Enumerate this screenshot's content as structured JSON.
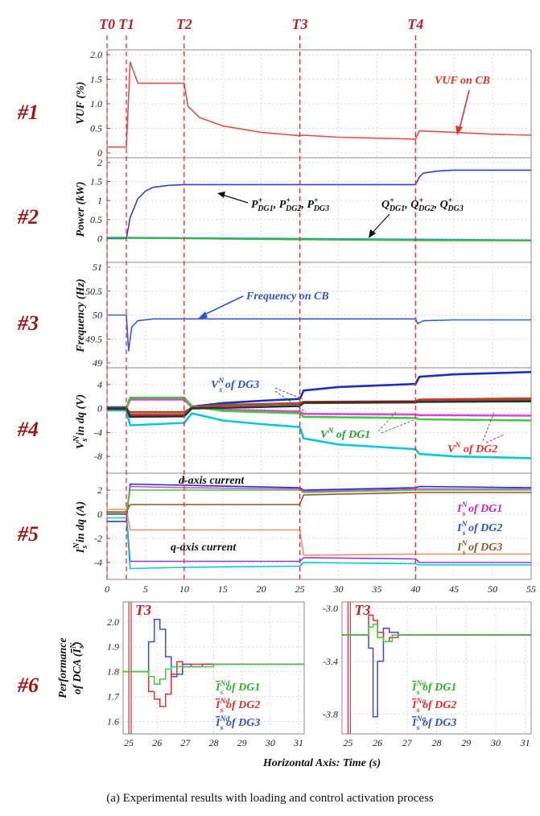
{
  "caption": "(a) Experimental results with loading and control activation process",
  "event_markers": [
    {
      "label": "T0",
      "t": 0
    },
    {
      "label": "T1",
      "t": 2.5
    },
    {
      "label": "T2",
      "t": 10
    },
    {
      "label": "T3",
      "t": 25
    },
    {
      "label": "T4",
      "t": 40
    }
  ],
  "colors": {
    "marker": "#e03030",
    "panel_label": "#a31414",
    "frame": "#888888",
    "grid": "#d8d8d8"
  },
  "chart_data": [
    {
      "type": "line",
      "panel": "#1",
      "ylabel": "VUF (%)",
      "xlim": [
        0,
        55
      ],
      "ylim": [
        0,
        2
      ],
      "yticks": [
        0,
        0.5,
        1,
        1.5,
        2.0
      ],
      "ytick_labels": [
        "0",
        "0.5",
        "1.0",
        "1.5",
        "2.0"
      ],
      "series": [
        {
          "name": "VUF on CB",
          "color": "#e05050",
          "x": [
            0,
            2.5,
            3,
            4,
            6,
            10,
            10.5,
            12,
            15,
            20,
            25,
            25.5,
            30,
            35,
            40,
            40.5,
            45,
            50,
            55
          ],
          "y": [
            0.12,
            0.12,
            1.85,
            1.42,
            1.42,
            1.42,
            0.95,
            0.72,
            0.55,
            0.42,
            0.35,
            0.36,
            0.32,
            0.3,
            0.28,
            0.45,
            0.42,
            0.38,
            0.36
          ]
        }
      ],
      "annotations": [
        {
          "text": "VUF on CB",
          "color": "#e03030"
        }
      ]
    },
    {
      "type": "line",
      "panel": "#2",
      "ylabel": "Power (kW)",
      "xlim": [
        0,
        55
      ],
      "ylim": [
        -0.5,
        2
      ],
      "yticks": [
        0,
        0.5,
        1,
        1.5,
        2
      ],
      "ytick_labels": [
        "0",
        "0.5",
        "1",
        "1.5",
        "2"
      ],
      "series": [
        {
          "color": "#3040d0",
          "x": [
            0,
            2.5,
            3,
            4,
            5,
            6,
            8,
            10,
            25,
            40,
            40.5,
            41,
            43,
            45,
            55
          ],
          "y": [
            0,
            0,
            0.55,
            1.05,
            1.25,
            1.35,
            1.4,
            1.42,
            1.42,
            1.42,
            1.62,
            1.72,
            1.78,
            1.8,
            1.8
          ]
        },
        {
          "color": "#20a8a8",
          "x": [
            0,
            2.5,
            10,
            25,
            40,
            55
          ],
          "y": [
            0.03,
            0.03,
            0.02,
            0.0,
            -0.02,
            -0.04
          ]
        },
        {
          "color": "#40b040",
          "x": [
            0,
            2.5,
            10,
            25,
            40,
            55
          ],
          "y": [
            0.02,
            0.01,
            0.0,
            -0.03,
            -0.05,
            -0.06
          ]
        }
      ],
      "annotations": [
        {
          "text": "P",
          "sub": "DG1",
          "suffix": ", "
        },
        {
          "text": "P",
          "sub": "DG2",
          "suffix": ", "
        },
        {
          "text": "P",
          "sub": "DG3",
          "suffix": ""
        },
        {
          "text": "Q",
          "sub": "DG1",
          "suffix": ", "
        },
        {
          "text": "Q",
          "sub": "DG2",
          "suffix": ", "
        },
        {
          "text": "Q",
          "sub": "DG3",
          "suffix": ""
        }
      ]
    },
    {
      "type": "line",
      "panel": "#3",
      "ylabel": "Frequency (Hz)",
      "xlim": [
        0,
        55
      ],
      "ylim": [
        49,
        51
      ],
      "yticks": [
        49,
        49.5,
        50,
        50.5,
        51
      ],
      "ytick_labels": [
        "49",
        "49.5",
        "50",
        "50.5",
        "51"
      ],
      "series": [
        {
          "name": "Frequency on CB",
          "color": "#3b5bd0",
          "x": [
            0,
            2.5,
            2.8,
            3.2,
            4,
            6,
            10,
            25,
            40,
            40.3,
            41,
            45,
            55
          ],
          "y": [
            50,
            50,
            49.25,
            49.75,
            49.88,
            49.92,
            49.92,
            49.92,
            49.92,
            49.82,
            49.88,
            49.9,
            49.9
          ]
        }
      ],
      "annotations": [
        {
          "text": "Frequency on CB",
          "color": "#2f55c8"
        }
      ]
    },
    {
      "type": "line",
      "panel": "#4",
      "ylabel": "V_s^N in dq (V)",
      "xlim": [
        0,
        55
      ],
      "ylim": [
        -10,
        6
      ],
      "yticks": [
        -8,
        -4,
        0,
        4
      ],
      "ytick_labels": [
        "-8",
        "-4",
        "0",
        "4"
      ],
      "series": [
        {
          "color": "#1a2fbf",
          "x": [
            0,
            2.5,
            3,
            10,
            11,
            15,
            20,
            25,
            25.5,
            30,
            40,
            40.5,
            45,
            55
          ],
          "y": [
            0.2,
            0.2,
            -1.2,
            -1.2,
            0.3,
            0.9,
            1.3,
            1.6,
            3.0,
            3.6,
            4.1,
            5.3,
            5.7,
            6.1
          ]
        },
        {
          "color": "#00c8d8",
          "x": [
            0,
            2.5,
            3,
            10,
            11,
            15,
            20,
            25,
            25.5,
            30,
            40,
            40.5,
            45,
            55
          ],
          "y": [
            -0.3,
            -0.3,
            -2.8,
            -2.4,
            -0.8,
            -2.0,
            -2.6,
            -3.1,
            -5.0,
            -6.0,
            -6.8,
            -7.6,
            -8.0,
            -8.3
          ]
        },
        {
          "color": "#e040e0",
          "x": [
            0,
            2.5,
            3,
            10,
            11,
            15,
            25,
            25.5,
            40,
            40.5,
            55
          ],
          "y": [
            0.0,
            0.0,
            1.5,
            1.5,
            0.2,
            -0.2,
            -0.5,
            -0.9,
            -1.0,
            -1.1,
            -1.2
          ]
        },
        {
          "color": "#40c840",
          "x": [
            0,
            2.5,
            3,
            10,
            11,
            15,
            25,
            25.5,
            40,
            40.5,
            55
          ],
          "y": [
            0.1,
            0.1,
            1.8,
            1.8,
            0.4,
            -0.4,
            -0.8,
            -1.4,
            -1.6,
            -1.8,
            -2.0
          ]
        },
        {
          "color": "#e03030",
          "x": [
            0,
            2.5,
            3,
            10,
            11,
            15,
            25,
            25.5,
            40,
            40.5,
            55
          ],
          "y": [
            0.0,
            0.0,
            -1.0,
            -1.0,
            0.2,
            0.6,
            0.9,
            1.1,
            1.2,
            1.5,
            1.7
          ]
        },
        {
          "color": "#8b5a2b",
          "x": [
            0,
            2.5,
            3,
            10,
            11,
            15,
            25,
            25.5,
            40,
            40.5,
            55
          ],
          "y": [
            -0.1,
            -0.1,
            -0.6,
            -0.6,
            0.1,
            0.5,
            0.8,
            0.9,
            1.0,
            1.3,
            1.5
          ]
        },
        {
          "color": "#303030",
          "x": [
            0,
            2.5,
            3,
            10,
            11,
            25,
            25.5,
            55
          ],
          "y": [
            0.0,
            0.0,
            -1.4,
            -1.3,
            0.0,
            0.4,
            1.0,
            1.2
          ]
        }
      ],
      "annotations": [
        {
          "text": "V",
          "sup": "N",
          "sub": "s",
          "suffix": " of DG3",
          "color": "#2f55c8"
        },
        {
          "text": "V",
          "sup": "N",
          "suffix": " of DG1",
          "color": "#30a030"
        },
        {
          "text": "V",
          "sup": "N",
          "suffix": " of DG2",
          "color": "#e03030"
        }
      ]
    },
    {
      "type": "line",
      "panel": "#5",
      "ylabel": "I_s^N in dq (A)",
      "xlim": [
        0,
        55
      ],
      "ylim": [
        -5,
        3
      ],
      "yticks": [
        -4,
        -2,
        0,
        2
      ],
      "ytick_labels": [
        "-4",
        "-2",
        "0",
        "2"
      ],
      "xticks": [
        0,
        5,
        10,
        15,
        20,
        25,
        30,
        35,
        40,
        45,
        50,
        55
      ],
      "xtick_labels": [
        "0",
        "5",
        "10",
        "15",
        "20",
        "25",
        "30",
        "35",
        "40",
        "45",
        "50",
        "55"
      ],
      "series": [
        {
          "color": "#1a2fbf",
          "x": [
            0,
            2.5,
            3,
            10,
            25,
            25.5,
            40,
            40.5,
            55
          ],
          "y": [
            -0.6,
            -0.6,
            2.5,
            2.4,
            2.2,
            2.0,
            2.2,
            2.3,
            2.2
          ]
        },
        {
          "color": "#e040e0",
          "x": [
            0,
            2.5,
            3,
            10,
            25,
            25.5,
            40,
            40.5,
            55
          ],
          "y": [
            0.0,
            0.0,
            2.3,
            2.2,
            2.1,
            1.9,
            2.1,
            2.1,
            2.1
          ]
        },
        {
          "color": "#8b5a2b",
          "x": [
            0,
            2.5,
            3,
            10,
            25,
            25.5,
            40,
            40.5,
            55
          ],
          "y": [
            0.2,
            0.2,
            0.8,
            0.8,
            0.8,
            1.6,
            1.8,
            1.8,
            1.8
          ]
        },
        {
          "color": "#e89070",
          "x": [
            0,
            2.5,
            3,
            10,
            25,
            25.5,
            40,
            40.5,
            55
          ],
          "y": [
            0.4,
            0.4,
            -1.3,
            -1.3,
            -1.3,
            -3.4,
            -3.3,
            -3.3,
            -3.3
          ]
        },
        {
          "color": "#9040c8",
          "x": [
            0,
            2.5,
            3,
            10,
            25,
            25.5,
            40,
            40.5,
            55
          ],
          "y": [
            0.0,
            0.0,
            -3.9,
            -3.9,
            -3.9,
            -3.6,
            -3.7,
            -4.0,
            -4.0
          ]
        },
        {
          "color": "#00c8d8",
          "x": [
            0,
            2.5,
            3,
            10,
            25,
            25.5,
            40,
            40.5,
            55
          ],
          "y": [
            -0.3,
            -0.3,
            -4.5,
            -4.4,
            -4.3,
            -4.0,
            -4.1,
            -4.2,
            -4.2
          ]
        },
        {
          "color": "#40c840",
          "x": [
            0,
            2.5,
            3,
            10,
            25,
            25.5,
            40,
            40.5,
            55
          ],
          "y": [
            0.1,
            0.1,
            2.0,
            2.0,
            2.0,
            1.8,
            2.0,
            2.0,
            2.0
          ]
        }
      ],
      "annotations": [
        {
          "text": "d-axis current",
          "color": "#111111"
        },
        {
          "text": "q-axis current",
          "color": "#111111"
        },
        {
          "text": "I",
          "sup": "N",
          "sub": "s",
          "suffix": " of DG1",
          "color": "#d020c8"
        },
        {
          "text": "I",
          "sup": "N",
          "sub": "s",
          "suffix": " of DG2",
          "color": "#2f55c8"
        },
        {
          "text": "I",
          "sup": "N",
          "sub": "s",
          "suffix": " of DG3",
          "color": "#8b5a2b"
        }
      ]
    },
    {
      "type": "line",
      "panel": "#6",
      "subplot": "left",
      "ylabel_lines": [
        "Performance",
        "of DCA ("
      ],
      "ylabel_symbol": {
        "text": "I",
        "sup": "N",
        "sub": "s"
      },
      "xlim": [
        24.8,
        31.2
      ],
      "ylim": [
        1.55,
        2.08
      ],
      "yticks": [
        1.6,
        1.7,
        1.8,
        1.9,
        2.0
      ],
      "ytick_labels": [
        "1.6",
        "1.7",
        "1.8",
        "1.9",
        "2.0"
      ],
      "xticks": [
        25,
        26,
        27,
        28,
        29,
        30,
        31
      ],
      "xtick_labels": [
        "25",
        "26",
        "27",
        "28",
        "29",
        "30",
        "31"
      ],
      "series": [
        {
          "color": "#3b4bd8",
          "step": true,
          "x": [
            24.8,
            25.5,
            25.7,
            25.9,
            26.1,
            26.3,
            26.5,
            26.7,
            26.9,
            27.2,
            27.6,
            28.0,
            31.2
          ],
          "y": [
            1.8,
            1.8,
            1.92,
            2.01,
            1.97,
            1.86,
            1.78,
            1.79,
            1.83,
            1.82,
            1.83,
            1.83,
            1.83
          ]
        },
        {
          "color": "#e03030",
          "step": true,
          "x": [
            24.8,
            25.5,
            25.7,
            25.9,
            26.1,
            26.3,
            26.5,
            26.7,
            26.9,
            27.2,
            28.0,
            31.2
          ],
          "y": [
            1.8,
            1.8,
            1.72,
            1.69,
            1.66,
            1.71,
            1.79,
            1.84,
            1.82,
            1.83,
            1.83,
            1.83
          ]
        },
        {
          "color": "#40c840",
          "step": true,
          "x": [
            24.8,
            25.5,
            25.7,
            25.9,
            26.1,
            26.3,
            26.5,
            26.7,
            27.0,
            28.0,
            31.2
          ],
          "y": [
            1.8,
            1.8,
            1.78,
            1.75,
            1.77,
            1.81,
            1.82,
            1.82,
            1.82,
            1.83,
            1.83
          ]
        }
      ],
      "annotations": [
        {
          "text": "I",
          "sup": "Nd",
          "sub": "s",
          "bar": true,
          "suffix": " of DG1",
          "color": "#30b030"
        },
        {
          "text": "I",
          "sup": "Nd",
          "sub": "s",
          "bar": true,
          "suffix": " of DG2",
          "color": "#e03030"
        },
        {
          "text": "I",
          "sup": "Nd",
          "sub": "s",
          "bar": true,
          "suffix": " of DG3",
          "color": "#2f55c8"
        }
      ]
    },
    {
      "type": "line",
      "panel": "#6",
      "subplot": "right",
      "xlim": [
        24.8,
        31.2
      ],
      "ylim": [
        -3.95,
        -2.95
      ],
      "yticks": [
        -3.8,
        -3.4,
        -3.0
      ],
      "ytick_labels": [
        "-3.8",
        "-3.4",
        "-3.0"
      ],
      "xticks": [
        25,
        26,
        27,
        28,
        29,
        30,
        31
      ],
      "xtick_labels": [
        "25",
        "26",
        "27",
        "28",
        "29",
        "30",
        "31"
      ],
      "series": [
        {
          "color": "#3b4bd8",
          "step": true,
          "x": [
            24.8,
            25.5,
            25.7,
            25.85,
            26.0,
            26.2,
            26.4,
            26.7,
            27.0,
            31.2
          ],
          "y": [
            -3.2,
            -3.2,
            -3.3,
            -3.82,
            -3.4,
            -3.15,
            -3.18,
            -3.2,
            -3.2,
            -3.2
          ]
        },
        {
          "color": "#e03030",
          "step": true,
          "x": [
            24.8,
            25.5,
            25.7,
            25.85,
            26.0,
            26.2,
            26.4,
            26.7,
            27.0,
            31.2
          ],
          "y": [
            -3.2,
            -3.2,
            -3.05,
            -3.09,
            -3.18,
            -3.25,
            -3.22,
            -3.2,
            -3.2,
            -3.2
          ]
        },
        {
          "color": "#40c840",
          "step": true,
          "x": [
            24.8,
            25.5,
            25.7,
            25.85,
            26.0,
            26.2,
            26.5,
            27.0,
            31.2
          ],
          "y": [
            -3.2,
            -3.2,
            -3.14,
            -3.12,
            -3.22,
            -3.25,
            -3.2,
            -3.2,
            -3.2
          ]
        }
      ],
      "annotations": [
        {
          "text": "I",
          "sup": "Nq",
          "sub": "s",
          "bar": true,
          "suffix": " of DG1",
          "color": "#30b030"
        },
        {
          "text": "I",
          "sup": "Nq",
          "sub": "s",
          "bar": true,
          "suffix": " of DG2",
          "color": "#e03030"
        },
        {
          "text": "I",
          "sup": "Nq",
          "sub": "s",
          "bar": true,
          "suffix": " of DG3",
          "color": "#2f55c8"
        }
      ]
    }
  ],
  "xlabel": "Horizontal Axis: Time (s)",
  "panel6_marker": "T3"
}
